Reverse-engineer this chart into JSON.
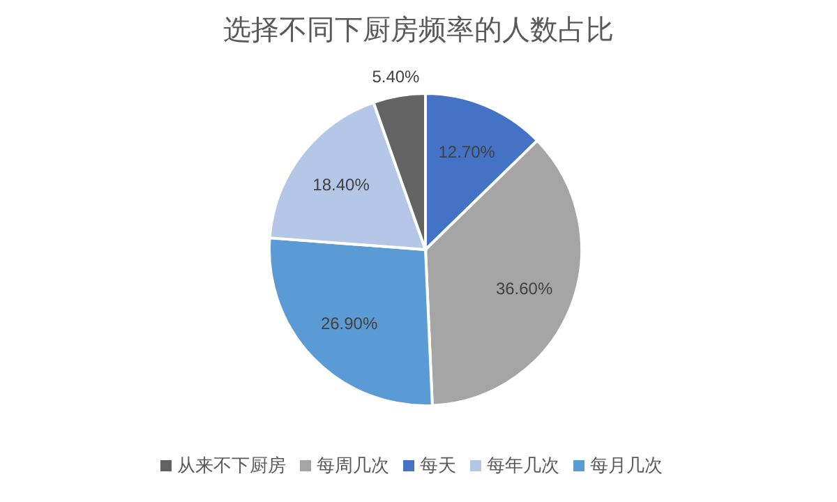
{
  "chart_data": {
    "type": "pie",
    "title": "选择不同下厨房频率的人数占比",
    "categories": [
      "每天",
      "每周几次",
      "每月几次",
      "每年几次",
      "从来不下厨房"
    ],
    "values": [
      12.7,
      36.6,
      26.9,
      18.4,
      5.4
    ],
    "value_labels": [
      "12.70%",
      "36.60%",
      "26.90%",
      "18.40%",
      "5.40%"
    ],
    "colors": [
      "#4472c4",
      "#a5a5a5",
      "#5b9bd5",
      "#b4c7e7",
      "#636363"
    ],
    "legend": "bottom"
  }
}
